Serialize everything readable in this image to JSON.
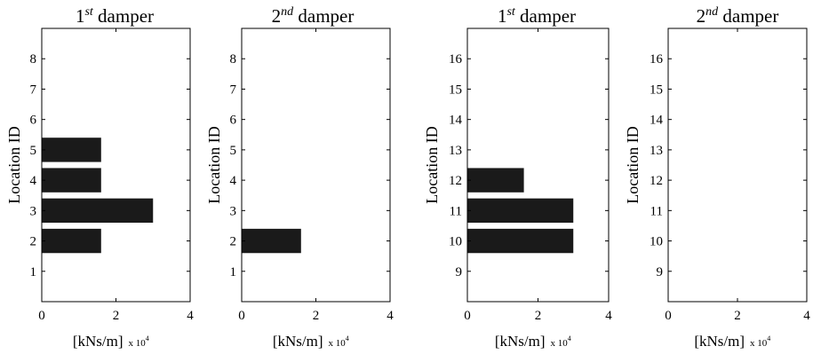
{
  "chart_data": [
    {
      "type": "bar",
      "orientation": "horizontal",
      "title": "1st damper",
      "title_base": "1",
      "title_sup": "st",
      "title_rest": " damper",
      "ylabel": "Location ID",
      "xlabel": "[kNs/m]",
      "x_multiplier": "x 10",
      "x_multiplier_exp": "4",
      "xlim": [
        0,
        4
      ],
      "xticks": [
        "0",
        "2",
        "4"
      ],
      "ylim": [
        0,
        9
      ],
      "yticks": [
        "1",
        "2",
        "3",
        "4",
        "5",
        "6",
        "7",
        "8"
      ],
      "categories": [
        2,
        3,
        4,
        5
      ],
      "values": [
        1.6,
        3.0,
        1.6,
        1.6
      ],
      "bar_color": "#1a1a1a"
    },
    {
      "type": "bar",
      "orientation": "horizontal",
      "title": "2nd damper",
      "title_base": "2",
      "title_sup": "nd",
      "title_rest": " damper",
      "ylabel": "Location ID",
      "xlabel": "[kNs/m]",
      "x_multiplier": "x 10",
      "x_multiplier_exp": "4",
      "xlim": [
        0,
        4
      ],
      "xticks": [
        "0",
        "2",
        "4"
      ],
      "ylim": [
        0,
        9
      ],
      "yticks": [
        "1",
        "2",
        "3",
        "4",
        "5",
        "6",
        "7",
        "8"
      ],
      "categories": [
        2
      ],
      "values": [
        1.6
      ],
      "bar_color": "#1a1a1a"
    },
    {
      "type": "bar",
      "orientation": "horizontal",
      "title": "1st damper",
      "title_base": "1",
      "title_sup": "st",
      "title_rest": " damper",
      "ylabel": "Location ID",
      "xlabel": "[kNs/m]",
      "x_multiplier": "x 10",
      "x_multiplier_exp": "4",
      "xlim": [
        0,
        4
      ],
      "xticks": [
        "0",
        "2",
        "4"
      ],
      "ylim": [
        8,
        17
      ],
      "yticks": [
        "9",
        "10",
        "11",
        "12",
        "13",
        "14",
        "15",
        "16"
      ],
      "categories": [
        10,
        11,
        12
      ],
      "values": [
        3.0,
        3.0,
        1.6
      ],
      "bar_color": "#1a1a1a"
    },
    {
      "type": "bar",
      "orientation": "horizontal",
      "title": "2nd damper",
      "title_base": "2",
      "title_sup": "nd",
      "title_rest": " damper",
      "ylabel": "Location ID",
      "xlabel": "[kNs/m]",
      "x_multiplier": "x 10",
      "x_multiplier_exp": "4",
      "xlim": [
        0,
        4
      ],
      "xticks": [
        "0",
        "2",
        "4"
      ],
      "ylim": [
        8,
        17
      ],
      "yticks": [
        "9",
        "10",
        "11",
        "12",
        "13",
        "14",
        "15",
        "16"
      ],
      "categories": [],
      "values": [],
      "bar_color": "#1a1a1a"
    }
  ]
}
